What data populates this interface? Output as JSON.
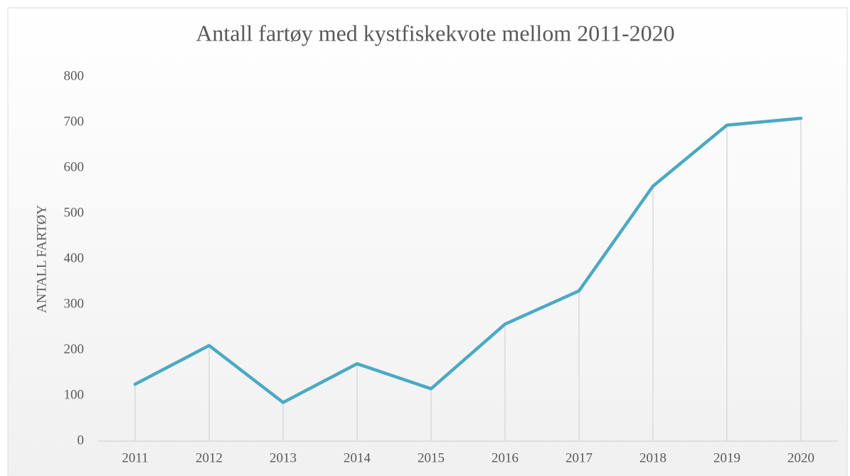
{
  "chart_data": {
    "type": "line",
    "title": "Antall fartøy med kystfiskekvote mellom 2011-2020",
    "y_label": "ANTALL FARTØY",
    "categories": [
      "2011",
      "2012",
      "2013",
      "2014",
      "2015",
      "2016",
      "2017",
      "2018",
      "2019",
      "2020"
    ],
    "values": [
      125,
      210,
      85,
      170,
      115,
      257,
      330,
      560,
      694,
      709
    ],
    "color": "#4ba9c3",
    "drop_lines": true,
    "ylim": [
      0,
      800
    ],
    "yticks": [
      0,
      100,
      200,
      300,
      400,
      500,
      600,
      700,
      800
    ]
  }
}
